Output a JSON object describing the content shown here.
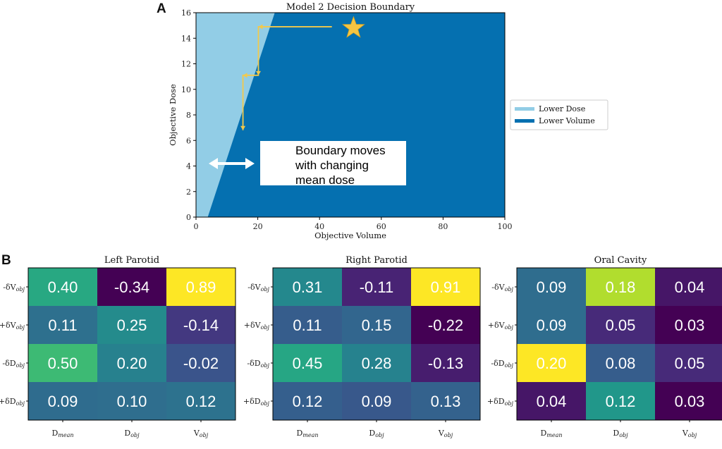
{
  "panel_a_label": "A",
  "panel_b_label": "B",
  "chart_data": [
    {
      "type": "area",
      "title": "Model 2 Decision Boundary",
      "xlabel": "Objective Volume",
      "ylabel": "Objective Dose",
      "xlim": [
        0,
        100
      ],
      "ylim": [
        0,
        16
      ],
      "xticks": [
        0,
        20,
        40,
        60,
        80,
        100
      ],
      "yticks": [
        0,
        2,
        4,
        6,
        8,
        10,
        12,
        14,
        16
      ],
      "boundary": [
        [
          3.8,
          0
        ],
        [
          25.5,
          16
        ]
      ],
      "colors": {
        "lower_dose": "#92cde6",
        "lower_volume": "#0570b0"
      },
      "legend": [
        {
          "label": "Lower Dose",
          "color": "#92cde6"
        },
        {
          "label": "Lower Volume",
          "color": "#0570b0"
        }
      ],
      "legend_position": "right",
      "star_point": [
        51,
        14.8
      ],
      "path": [
        [
          44,
          14.9
        ],
        [
          20.2,
          14.9
        ],
        [
          20.2,
          11.1
        ],
        [
          15.2,
          11.1
        ],
        [
          15.2,
          6.8
        ]
      ],
      "annotation": [
        "Boundary moves",
        "with changing",
        "mean dose"
      ]
    },
    {
      "type": "heatmap",
      "title": "Left Parotid",
      "row_labels": [
        "-δV",
        "+δV",
        "-δD",
        "+δD"
      ],
      "row_subscript": "obj",
      "col_labels": [
        "D",
        "D",
        "V"
      ],
      "col_subscripts": [
        "mean",
        "obj",
        "obj"
      ],
      "values": [
        [
          0.4,
          -0.34,
          0.89
        ],
        [
          0.11,
          0.25,
          -0.14
        ],
        [
          0.5,
          0.2,
          -0.02
        ],
        [
          0.09,
          0.1,
          0.12
        ]
      ],
      "labels": [
        [
          "0.40",
          "-0.34",
          "0.89"
        ],
        [
          "0.11",
          "0.25",
          "-0.14"
        ],
        [
          "0.50",
          "0.20",
          "-0.02"
        ],
        [
          "0.09",
          "0.10",
          "0.12"
        ]
      ]
    },
    {
      "type": "heatmap",
      "title": "Right Parotid",
      "row_labels": [
        "-δV",
        "+δV",
        "-δD",
        "+δD"
      ],
      "row_subscript": "obj",
      "col_labels": [
        "D",
        "D",
        "V"
      ],
      "col_subscripts": [
        "mean",
        "obj",
        "obj"
      ],
      "values": [
        [
          0.31,
          -0.11,
          0.91
        ],
        [
          0.11,
          0.15,
          -0.22
        ],
        [
          0.45,
          0.28,
          -0.13
        ],
        [
          0.12,
          0.09,
          0.13
        ]
      ],
      "labels": [
        [
          "0.31",
          "-0.11",
          "0.91"
        ],
        [
          "0.11",
          "0.15",
          "-0.22"
        ],
        [
          "0.45",
          "0.28",
          "-0.13"
        ],
        [
          "0.12",
          "0.09",
          "0.13"
        ]
      ]
    },
    {
      "type": "heatmap",
      "title": "Oral Cavity",
      "row_labels": [
        "-δV",
        "+δV",
        "-δD",
        "+δD"
      ],
      "row_subscript": "obj",
      "col_labels": [
        "D",
        "D",
        "V"
      ],
      "col_subscripts": [
        "mean",
        "obj",
        "obj"
      ],
      "values": [
        [
          0.09,
          0.18,
          0.04
        ],
        [
          0.09,
          0.05,
          0.03
        ],
        [
          0.2,
          0.08,
          0.05
        ],
        [
          0.04,
          0.12,
          0.03
        ]
      ],
      "labels": [
        [
          "0.09",
          "0.18",
          "0.04"
        ],
        [
          "0.09",
          "0.05",
          "0.03"
        ],
        [
          "0.20",
          "0.08",
          "0.05"
        ],
        [
          "0.04",
          "0.12",
          "0.03"
        ]
      ]
    }
  ]
}
